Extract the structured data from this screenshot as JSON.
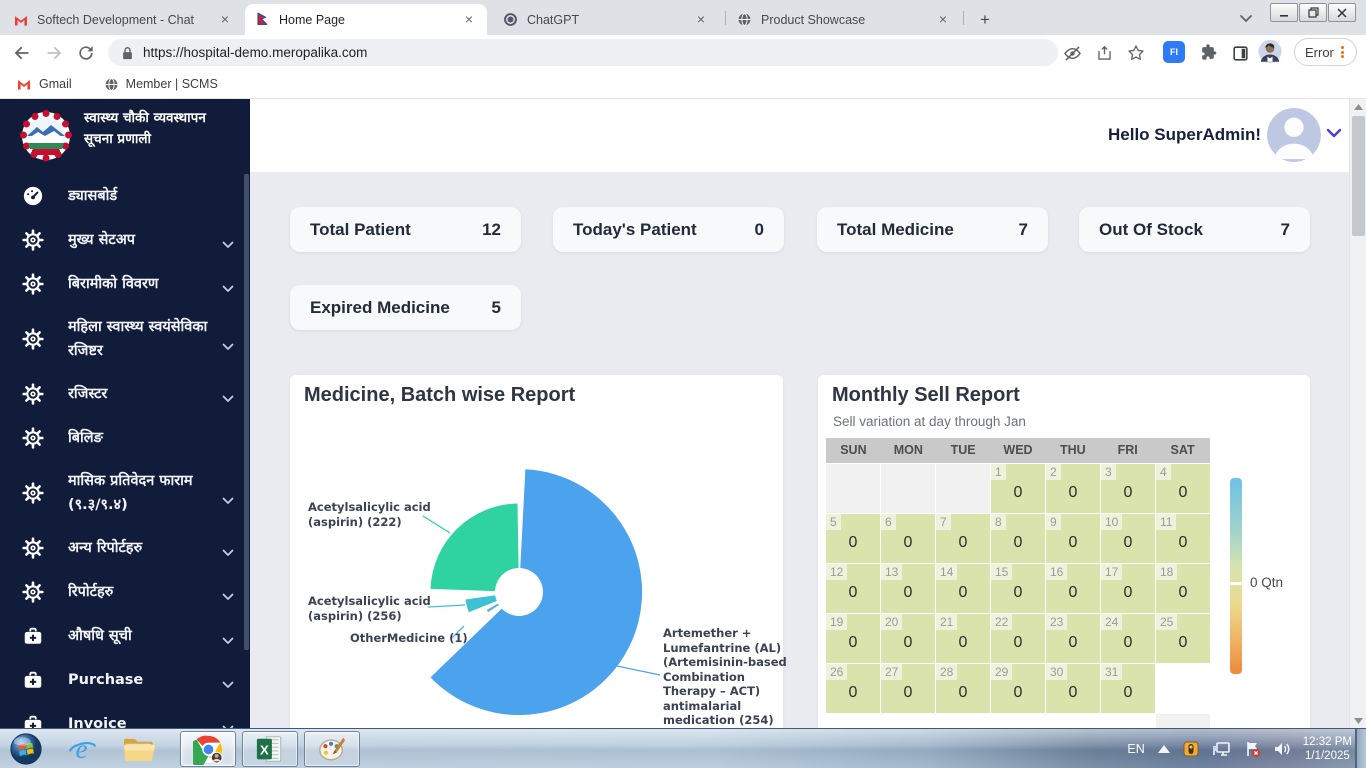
{
  "browser": {
    "tabs": [
      {
        "title": "Softech Development - Chat",
        "favicon": "gmail",
        "active": false
      },
      {
        "title": "Home Page",
        "favicon": "nepal-flag",
        "active": true
      },
      {
        "title": "ChatGPT",
        "favicon": "chatgpt",
        "active": false
      },
      {
        "title": "Product Showcase",
        "favicon": "globe",
        "active": false
      }
    ],
    "url": "https://hospital-demo.meropalika.com",
    "error_button_label": "Error",
    "extension_badge": "FI",
    "bookmarks": [
      {
        "label": "Gmail",
        "icon": "gmail"
      },
      {
        "label": "Member | SCMS",
        "icon": "globe"
      }
    ]
  },
  "sidebar": {
    "brand_title": "स्वास्थ्य चौकी व्यवस्थापन सूचना प्रणाली",
    "items": [
      {
        "label": "ड्यासबोर्ड",
        "icon": "dashboard",
        "chevron": false,
        "two_line": false
      },
      {
        "label": "मुख्य सेटअप",
        "icon": "gear",
        "chevron": true,
        "two_line": false
      },
      {
        "label": "बिरामीको विवरण",
        "icon": "gear",
        "chevron": true,
        "two_line": false
      },
      {
        "label": "महिला स्वास्थ्य स्वयंसेविका रजिष्टर",
        "icon": "gear",
        "chevron": true,
        "two_line": true
      },
      {
        "label": "रजिस्टर",
        "icon": "gear",
        "chevron": true,
        "two_line": false
      },
      {
        "label": "बिलिङ",
        "icon": "gear",
        "chevron": false,
        "two_line": false
      },
      {
        "label": "मासिक प्रतिवेदन फाराम (९.३/९.४)",
        "icon": "gear",
        "chevron": true,
        "two_line": true
      },
      {
        "label": "अन्य रिपोर्टहरु",
        "icon": "gear",
        "chevron": true,
        "two_line": false
      },
      {
        "label": "रिपोर्टहरु",
        "icon": "gear",
        "chevron": true,
        "two_line": false
      },
      {
        "label": "औषधि सूची",
        "icon": "medical-bag",
        "chevron": true,
        "two_line": false
      },
      {
        "label": "Purchase",
        "icon": "medical-bag",
        "chevron": true,
        "two_line": false
      },
      {
        "label": "Invoice",
        "icon": "medical-bag",
        "chevron": true,
        "two_line": false
      }
    ]
  },
  "header": {
    "greeting": "Hello SuperAdmin!"
  },
  "stats": [
    {
      "label": "Total Patient",
      "value": "12"
    },
    {
      "label": "Today's Patient",
      "value": "0"
    },
    {
      "label": "Total Medicine",
      "value": "7"
    },
    {
      "label": "Out Of Stock",
      "value": "7"
    },
    {
      "label": "Expired Medicine",
      "value": "5"
    }
  ],
  "chart_data": [
    {
      "type": "pie",
      "title": "Medicine, Batch wise Report",
      "slices": [
        {
          "label": "Artemether + Lumefantrine (AL) (Artemisinin-based Combination Therapy – ACT) antimalarial medication (254)",
          "label_lines": [
            "Artemether +",
            "Lumefantrine (AL)",
            "(Artemisinin-based",
            "Combination",
            "Therapy – ACT)",
            "antimalarial",
            "medication (254)"
          ],
          "color": "#4ba3ee",
          "start_deg": 3,
          "end_deg": 226,
          "radius_ratio": 1
        },
        {
          "label": "OtherMedicine (1)",
          "label_lines": [
            "OtherMedicine (1)"
          ],
          "color": "#4fb5e8",
          "start_deg": 237,
          "end_deg": 241,
          "radius_ratio": 0.3
        },
        {
          "label": "Acetylsalicylic acid (aspirin) (256)",
          "label_lines": [
            "Acetylsalicylic acid",
            "(aspirin) (256)"
          ],
          "color": "#3ec1d3",
          "start_deg": 248,
          "end_deg": 262,
          "radius_ratio": 0.44
        },
        {
          "label": "Acetylsalicylic acid (aspirin) (222)",
          "label_lines": [
            "Acetylsalicylic acid",
            "(aspirin) (222)"
          ],
          "color": "#2fd3a2",
          "start_deg": 272,
          "end_deg": 359,
          "radius_ratio": 0.72
        }
      ]
    },
    {
      "type": "heatmap",
      "title": "Monthly Sell Report",
      "subtitle": "Sell variation at day through Jan",
      "weekdays": [
        "SUN",
        "MON",
        "TUE",
        "WED",
        "THU",
        "FRI",
        "SAT"
      ],
      "month_days": 31,
      "first_day_column": 3,
      "daily_values": [
        0,
        0,
        0,
        0,
        0,
        0,
        0,
        0,
        0,
        0,
        0,
        0,
        0,
        0,
        0,
        0,
        0,
        0,
        0,
        0,
        0,
        0,
        0,
        0,
        0,
        0,
        0,
        0,
        0,
        0,
        0
      ],
      "legend_label": "0 Qtn"
    }
  ],
  "taskbar": {
    "tray_language": "EN",
    "clock_time": "12:32 PM",
    "clock_date": "1/1/2025"
  }
}
